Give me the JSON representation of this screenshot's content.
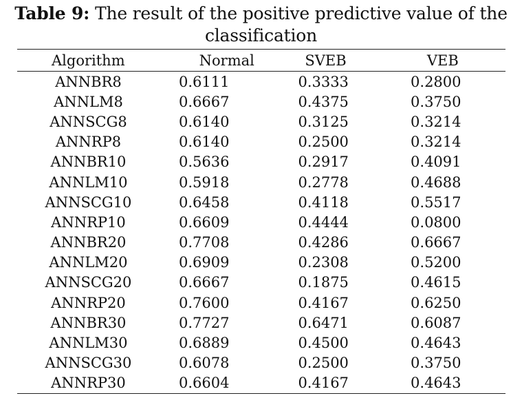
{
  "caption": {
    "label": "Table 9:",
    "text": " The result of the positive predictive value of the classification"
  },
  "table": {
    "columns": [
      "Algorithm",
      "Normal",
      "SVEB",
      "VEB"
    ],
    "rows": [
      [
        "ANNBR8",
        "0.6111",
        "0.3333",
        "0.2800"
      ],
      [
        "ANNLM8",
        "0.6667",
        "0.4375",
        "0.3750"
      ],
      [
        "ANNSCG8",
        "0.6140",
        "0.3125",
        "0.3214"
      ],
      [
        "ANNRP8",
        "0.6140",
        "0.2500",
        "0.3214"
      ],
      [
        "ANNBR10",
        "0.5636",
        "0.2917",
        "0.4091"
      ],
      [
        "ANNLM10",
        "0.5918",
        "0.2778",
        "0.4688"
      ],
      [
        "ANNSCG10",
        "0.6458",
        "0.4118",
        "0.5517"
      ],
      [
        "ANNRP10",
        "0.6609",
        "0.4444",
        "0.0800"
      ],
      [
        "ANNBR20",
        "0.7708",
        "0.4286",
        "0.6667"
      ],
      [
        "ANNLM20",
        "0.6909",
        "0.2308",
        "0.5200"
      ],
      [
        "ANNSCG20",
        "0.6667",
        "0.1875",
        "0.4615"
      ],
      [
        "ANNRP20",
        "0.7600",
        "0.4167",
        "0.6250"
      ],
      [
        "ANNBR30",
        "0.7727",
        "0.6471",
        "0.6087"
      ],
      [
        "ANNLM30",
        "0.6889",
        "0.4500",
        "0.4643"
      ],
      [
        "ANNSCG30",
        "0.6078",
        "0.2500",
        "0.3750"
      ],
      [
        "ANNRP30",
        "0.6604",
        "0.4167",
        "0.4643"
      ]
    ]
  }
}
